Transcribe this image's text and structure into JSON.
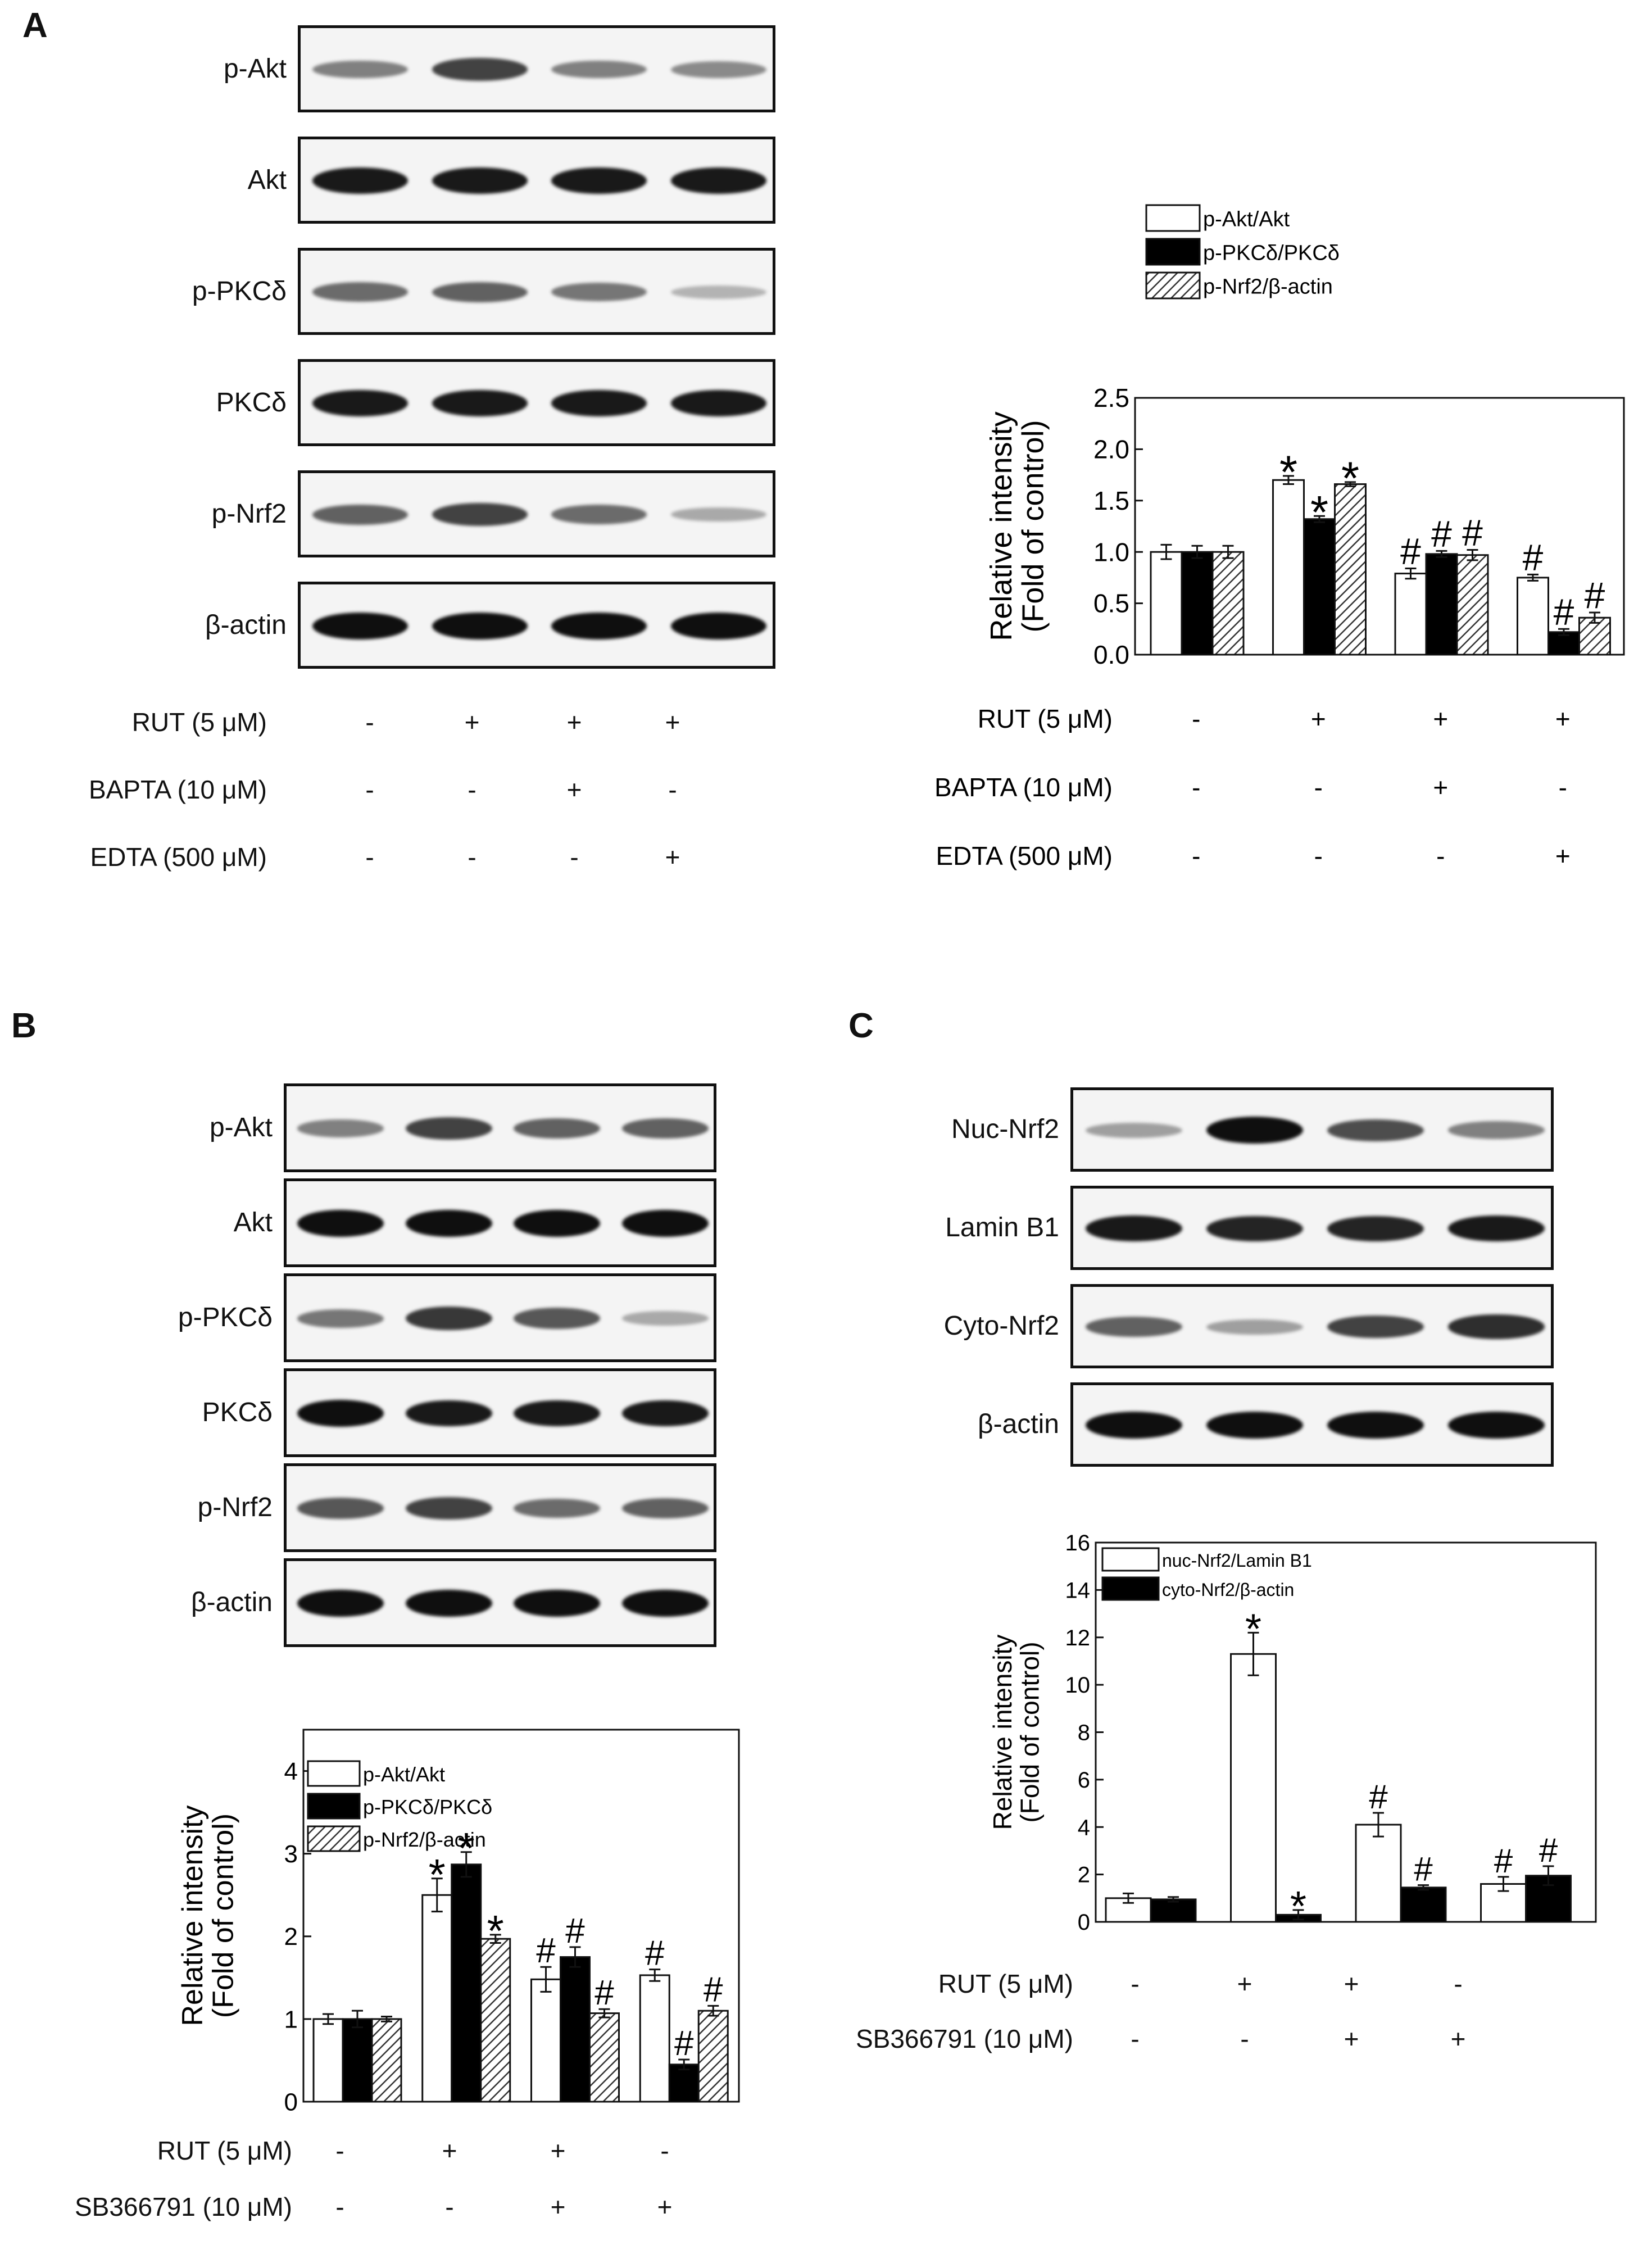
{
  "panels": {
    "A": {
      "letter": "A",
      "blots": [
        {
          "label": "p-Akt",
          "bands": [
            0.45,
            0.75,
            0.45,
            0.4
          ]
        },
        {
          "label": "Akt",
          "bands": [
            0.95,
            0.95,
            0.95,
            0.95
          ]
        },
        {
          "label": "p-PKCδ",
          "bands": [
            0.55,
            0.6,
            0.5,
            0.2
          ]
        },
        {
          "label": "PKCδ",
          "bands": [
            0.95,
            0.95,
            0.95,
            0.95
          ]
        },
        {
          "label": "p-Nrf2",
          "bands": [
            0.6,
            0.75,
            0.55,
            0.25
          ]
        },
        {
          "label": "β-actin",
          "bands": [
            1.0,
            1.0,
            1.0,
            1.0
          ]
        }
      ],
      "treatments": [
        {
          "label": "RUT  (5 μM)",
          "signs": [
            "-",
            "+",
            "+",
            "+"
          ]
        },
        {
          "label": "BAPTA  (10 μM)",
          "signs": [
            "-",
            "-",
            "+",
            "-"
          ]
        },
        {
          "label": "EDTA  (500 μM)",
          "signs": [
            "-",
            "-",
            "-",
            "+"
          ]
        }
      ]
    },
    "B": {
      "letter": "B",
      "blots": [
        {
          "label": "p-Akt",
          "bands": [
            0.45,
            0.75,
            0.6,
            0.6
          ]
        },
        {
          "label": "Akt",
          "bands": [
            1.0,
            1.0,
            1.0,
            1.0
          ]
        },
        {
          "label": "p-PKCδ",
          "bands": [
            0.5,
            0.8,
            0.65,
            0.25
          ]
        },
        {
          "label": "PKCδ",
          "bands": [
            1.0,
            0.95,
            0.95,
            0.95
          ]
        },
        {
          "label": "p-Nrf2",
          "bands": [
            0.65,
            0.75,
            0.55,
            0.6
          ]
        },
        {
          "label": "β-actin",
          "bands": [
            1.0,
            1.0,
            1.0,
            1.0
          ]
        }
      ],
      "treatments": [
        {
          "label": "RUT  (5 μM)",
          "signs": [
            "-",
            "+",
            "+",
            "-"
          ]
        },
        {
          "label": "SB366791 (10 μM)",
          "signs": [
            "-",
            "-",
            "+",
            "+"
          ]
        }
      ]
    },
    "C": {
      "letter": "C",
      "blots": [
        {
          "label": "Nuc-Nrf2",
          "bands": [
            0.3,
            1.0,
            0.7,
            0.45
          ]
        },
        {
          "label": "Lamin B1",
          "bands": [
            0.95,
            0.9,
            0.9,
            0.95
          ]
        },
        {
          "label": "Cyto-Nrf2",
          "bands": [
            0.6,
            0.3,
            0.75,
            0.85
          ]
        },
        {
          "label": "β-actin",
          "bands": [
            1.0,
            1.0,
            1.0,
            1.0
          ]
        }
      ],
      "treatments": [
        {
          "label": "RUT  (5 μM)",
          "signs": [
            "-",
            "+",
            "+",
            "-"
          ]
        },
        {
          "label": "SB366791  (10 μM)",
          "signs": [
            "-",
            "-",
            "+",
            "+"
          ]
        }
      ]
    }
  },
  "chart_data": [
    {
      "id": "A",
      "type": "bar",
      "ylabel": "Relative intensity\n(Fold of control)",
      "ylim": [
        0,
        2.5
      ],
      "yticks": [
        "0.0",
        "0.5",
        "1.0",
        "1.5",
        "2.0",
        "2.5"
      ],
      "legend_position": "top-left",
      "series": [
        {
          "name": "p-Akt/Akt",
          "fill": "open",
          "values": [
            1.0,
            1.7,
            0.79,
            0.75
          ],
          "errors": [
            0.07,
            0.04,
            0.05,
            0.03
          ],
          "marks": [
            "",
            "*",
            "#",
            "#"
          ]
        },
        {
          "name": "p-PKCδ/PKCδ",
          "fill": "solid",
          "values": [
            1.0,
            1.32,
            0.98,
            0.22
          ],
          "errors": [
            0.06,
            0.03,
            0.03,
            0.03
          ],
          "marks": [
            "",
            "*",
            "#",
            "#"
          ]
        },
        {
          "name": "p-Nrf2/β-actin",
          "fill": "hatch",
          "values": [
            1.0,
            1.66,
            0.97,
            0.36
          ],
          "errors": [
            0.06,
            0.02,
            0.05,
            0.05
          ],
          "marks": [
            "",
            "*",
            "#",
            "#"
          ]
        }
      ],
      "treatments": [
        {
          "label": "RUT  (5 μM)",
          "signs": [
            "-",
            "+",
            "+",
            "+"
          ]
        },
        {
          "label": "BAPTA  (10 μM)",
          "signs": [
            "-",
            "-",
            "+",
            "-"
          ]
        },
        {
          "label": "EDTA  (500 μM)",
          "signs": [
            "-",
            "-",
            "-",
            "+"
          ]
        }
      ]
    },
    {
      "id": "B",
      "type": "bar",
      "ylabel": "Relative intensity\n(Fold of control)",
      "ylim": [
        0,
        4.5
      ],
      "yticks": [
        "0",
        "1",
        "2",
        "3",
        "4"
      ],
      "legend_position": "top-left",
      "series": [
        {
          "name": "p-Akt/Akt",
          "fill": "open",
          "values": [
            1.0,
            2.5,
            1.48,
            1.53
          ],
          "errors": [
            0.06,
            0.2,
            0.15,
            0.07
          ],
          "marks": [
            "",
            "*",
            "#",
            "#"
          ]
        },
        {
          "name": "p-PKCδ/PKCδ",
          "fill": "solid",
          "values": [
            1.0,
            2.87,
            1.75,
            0.45
          ],
          "errors": [
            0.1,
            0.15,
            0.12,
            0.06
          ],
          "marks": [
            "",
            "*",
            "#",
            "#"
          ]
        },
        {
          "name": "p-Nrf2/β-actin",
          "fill": "hatch",
          "values": [
            1.0,
            1.97,
            1.07,
            1.1
          ],
          "errors": [
            0.03,
            0.05,
            0.05,
            0.06
          ],
          "marks": [
            "",
            "*",
            "#",
            "#"
          ]
        }
      ]
    },
    {
      "id": "C",
      "type": "bar",
      "ylabel": "Relative intensity\n(Fold of control)",
      "ylim": [
        0,
        16
      ],
      "yticks": [
        "0",
        "2",
        "4",
        "6",
        "8",
        "10",
        "12",
        "14",
        "16"
      ],
      "legend_position": "top-left",
      "series": [
        {
          "name": "nuc-Nrf2/Lamin B1",
          "fill": "open",
          "values": [
            1.0,
            11.3,
            4.1,
            1.6
          ],
          "errors": [
            0.2,
            0.9,
            0.5,
            0.3
          ],
          "marks": [
            "",
            "*",
            "#",
            "#"
          ]
        },
        {
          "name": "cyto-Nrf2/β-actin",
          "fill": "solid",
          "values": [
            0.95,
            0.3,
            1.45,
            1.95
          ],
          "errors": [
            0.1,
            0.2,
            0.1,
            0.4
          ],
          "marks": [
            "",
            "*",
            "#",
            "#"
          ]
        }
      ]
    }
  ]
}
